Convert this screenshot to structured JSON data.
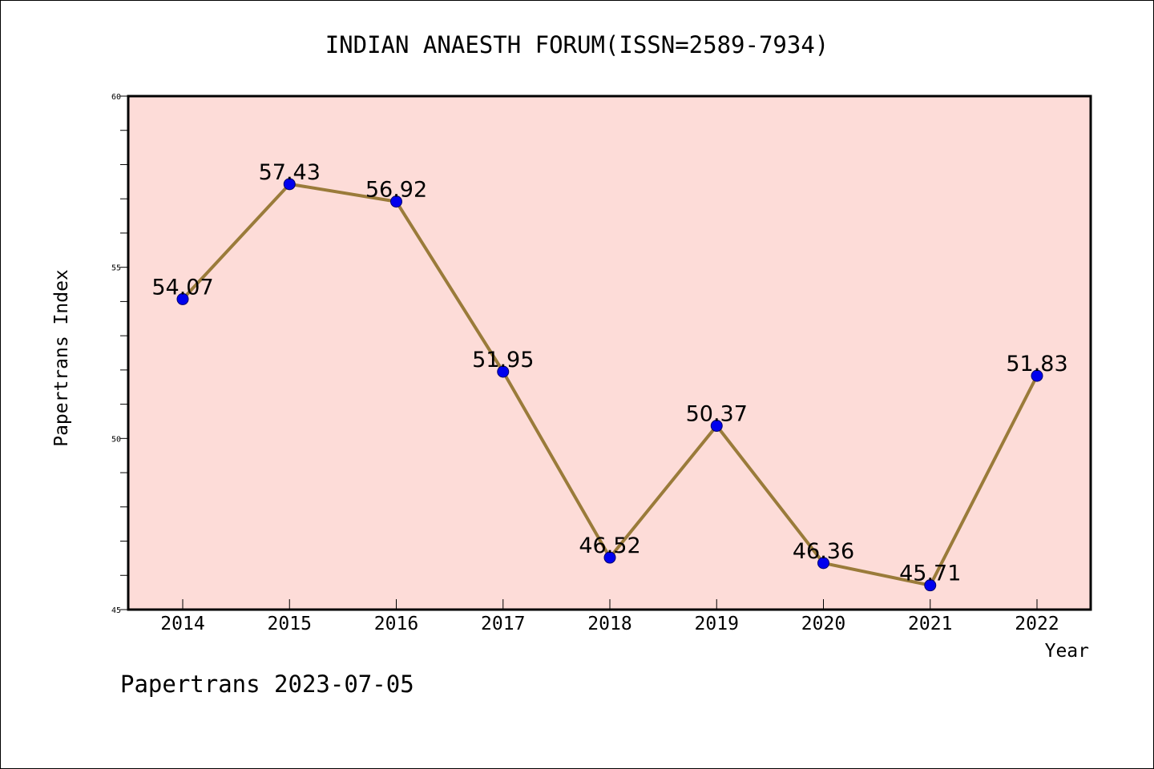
{
  "chart_data": {
    "type": "line",
    "title": "INDIAN ANAESTH FORUM(ISSN=2589-7934)",
    "xlabel": "Year",
    "ylabel": "Papertrans Index",
    "x": [
      "2014",
      "2015",
      "2016",
      "2017",
      "2018",
      "2019",
      "2020",
      "2021",
      "2022"
    ],
    "values": [
      54.07,
      57.43,
      56.92,
      51.95,
      46.52,
      50.37,
      46.36,
      45.71,
      51.83
    ],
    "data_labels": [
      "54.07",
      "57.43",
      "56.92",
      "51.95",
      "46.52",
      "50.37",
      "46.36",
      "45.71",
      "51.83"
    ],
    "ylim": [
      45,
      60
    ],
    "yticks": [
      "45",
      "50",
      "55",
      "60"
    ],
    "grid": false,
    "colors": {
      "plot_background": "#fddcd8",
      "line": "#9a7b3a",
      "marker": "#0000ee"
    }
  },
  "footer": "Papertrans 2023-07-05"
}
